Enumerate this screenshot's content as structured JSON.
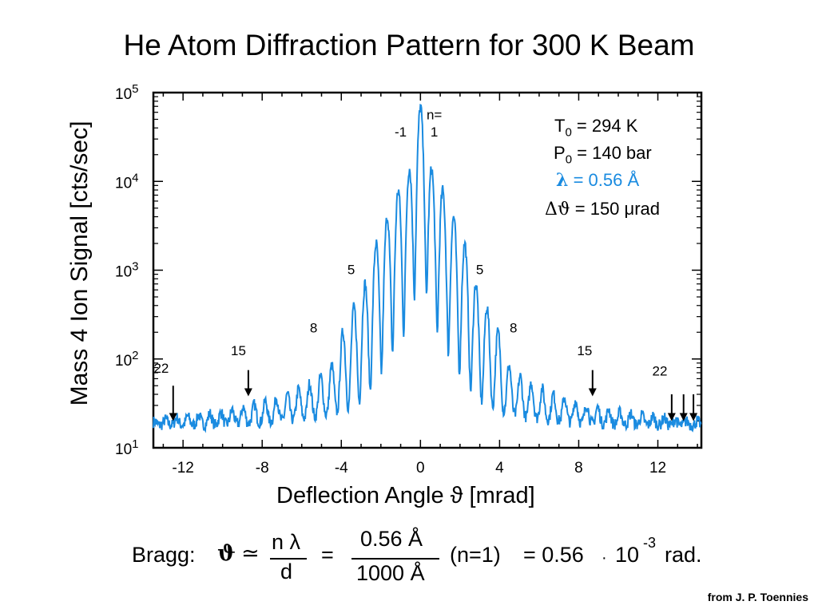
{
  "chart_data": {
    "type": "line",
    "title": "He Atom Diffraction Pattern for 300 K Beam",
    "xlabel": "Deflection Angle ϑ [mrad]",
    "ylabel": "Mass 4 Ion Signal [cts/sec]",
    "xlim": [
      -13.5,
      14.2
    ],
    "ylim": [
      10,
      100000
    ],
    "y_scale": "log",
    "x_ticks": [
      -12,
      -8,
      -4,
      0,
      4,
      8,
      12
    ],
    "x_tick_labels": [
      "-12",
      "-8",
      "-4",
      "0",
      "4",
      "8",
      "12"
    ],
    "y_ticks": [
      10,
      100,
      1000,
      10000,
      100000
    ],
    "y_tick_labels": [
      {
        "base": "10",
        "exp": "1"
      },
      {
        "base": "10",
        "exp": "2"
      },
      {
        "base": "10",
        "exp": "3"
      },
      {
        "base": "10",
        "exp": "4"
      },
      {
        "base": "10",
        "exp": "5"
      }
    ],
    "series_color": "#1a8be0",
    "peak_spacing_mrad": 0.56,
    "central_peak_value": 70000,
    "peak_values_by_order": [
      {
        "n": 1,
        "value": 14000
      },
      {
        "n": 2,
        "value": 8000
      },
      {
        "n": 3,
        "value": 4000
      },
      {
        "n": 4,
        "value": 2000
      },
      {
        "n": 5,
        "value": 700
      },
      {
        "n": 6,
        "value": 380
      },
      {
        "n": 7,
        "value": 200
      },
      {
        "n": 8,
        "value": 80
      },
      {
        "n": 9,
        "value": 60
      },
      {
        "n": 10,
        "value": 50
      },
      {
        "n": 12,
        "value": 38
      },
      {
        "n": 15,
        "value": 30
      },
      {
        "n": 18,
        "value": 25
      },
      {
        "n": 22,
        "value": 22
      },
      {
        "n": 24,
        "value": 20
      }
    ],
    "background_level": 18,
    "peak_annotations": [
      {
        "text": "n=",
        "x": 0.7,
        "y": 50000
      },
      {
        "text": "1",
        "x": 0.7,
        "y": 32000
      },
      {
        "text": "-1",
        "x": -1.0,
        "y": 32000
      },
      {
        "text": "5",
        "x": -3.5,
        "y": 900
      },
      {
        "text": "5",
        "x": 3.0,
        "y": 900
      },
      {
        "text": "8",
        "x": -5.4,
        "y": 200
      },
      {
        "text": "8",
        "x": 4.7,
        "y": 200
      },
      {
        "text": "15",
        "x": -9.2,
        "y": 110
      },
      {
        "text": "15",
        "x": 8.3,
        "y": 110
      },
      {
        "text": "22",
        "x": -13.1,
        "y": 70
      },
      {
        "text": "22",
        "x": 12.1,
        "y": 65
      }
    ],
    "arrows": [
      {
        "x": -12.5,
        "y_top": 50,
        "y_tip": 20
      },
      {
        "x": -8.7,
        "y_top": 75,
        "y_tip": 38
      },
      {
        "x": 8.7,
        "y_top": 75,
        "y_tip": 38
      },
      {
        "x": 12.7,
        "y_top": 40,
        "y_tip": 20
      },
      {
        "x": 13.3,
        "y_top": 40,
        "y_tip": 20
      },
      {
        "x": 13.8,
        "y_top": 40,
        "y_tip": 20
      }
    ]
  },
  "params": {
    "T0": {
      "symbol": "T",
      "sub": "0",
      "value": "= 294 K"
    },
    "P0": {
      "symbol": "P",
      "sub": "0",
      "value": "= 140 bar"
    },
    "lambda": {
      "symbol": "λ",
      "value": "= 0.56 Å"
    },
    "dtheta": {
      "symbol": "Δϑ",
      "value": "= 150 μrad"
    }
  },
  "bragg": {
    "prefix": "Bragg:",
    "theta": "ϑ",
    "approx": "≃",
    "frac1_num": "n λ",
    "frac1_den": "d",
    "equals": "=",
    "frac2_num": "0.56 Å",
    "frac2_den": "1000 Å",
    "order": "(n=1)",
    "result": "= 0.56",
    "dot": "·",
    "power_base": "10",
    "power_exp": "-3",
    "unit": "rad."
  },
  "credit": "from J. P. Toennies"
}
